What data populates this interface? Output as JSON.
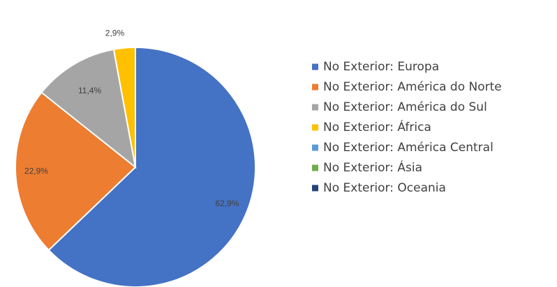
{
  "chart_data": {
    "type": "pie",
    "title": "",
    "slices": [
      {
        "label": "No Exterior: Europa",
        "value": 62.9,
        "value_label": "62,9%",
        "color": "#4472C4"
      },
      {
        "label": "No Exterior: América do Norte",
        "value": 22.9,
        "value_label": "22,9%",
        "color": "#ED7D31"
      },
      {
        "label": "No Exterior: América do Sul",
        "value": 11.4,
        "value_label": "11,4%",
        "color": "#A5A5A5"
      },
      {
        "label": "No Exterior: África",
        "value": 2.9,
        "value_label": "2,9%",
        "color": "#FFC000"
      },
      {
        "label": "No Exterior: América Central",
        "value": 0,
        "value_label": "",
        "color": "#5B9BD5"
      },
      {
        "label": "No Exterior: Ásia",
        "value": 0,
        "value_label": "",
        "color": "#70AD47"
      },
      {
        "label": "No Exterior: Oceania",
        "value": 0,
        "value_label": "",
        "color": "#264478"
      }
    ],
    "legend_position": "right",
    "label_color": "#404040"
  }
}
